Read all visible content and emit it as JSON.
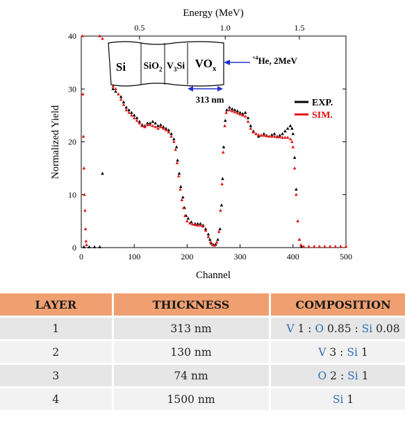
{
  "chart_data": {
    "type": "scatter",
    "title": "",
    "xlabel": "Channel",
    "ylabel": "Normalized Yield",
    "top_axis_label": "Energy (MeV)",
    "xlim": [
      0,
      500
    ],
    "ylim": [
      0,
      40
    ],
    "xticks": [
      "0",
      "100",
      "200",
      "300",
      "400",
      "500"
    ],
    "yticks": [
      "0",
      "10",
      "20",
      "30",
      "40"
    ],
    "top_ticks": [
      {
        "channel": 110,
        "label": "0.5"
      },
      {
        "channel": 272,
        "label": "1.0"
      },
      {
        "channel": 412,
        "label": "1.5"
      }
    ],
    "series": [
      {
        "name": "EXP.",
        "color": "#000000",
        "marker": "triangle",
        "points": [
          [
            5,
            0.1
          ],
          [
            15,
            0.1
          ],
          [
            25,
            0.1
          ],
          [
            35,
            0.1
          ],
          [
            40,
            14
          ],
          [
            60,
            30
          ],
          [
            65,
            29.5
          ],
          [
            70,
            29
          ],
          [
            75,
            28.5
          ],
          [
            80,
            27.5
          ],
          [
            85,
            26.5
          ],
          [
            90,
            26
          ],
          [
            95,
            25.5
          ],
          [
            100,
            25
          ],
          [
            105,
            24.5
          ],
          [
            110,
            23.8
          ],
          [
            115,
            23.2
          ],
          [
            120,
            23
          ],
          [
            125,
            23.5
          ],
          [
            130,
            23.5
          ],
          [
            135,
            23.8
          ],
          [
            140,
            23.5
          ],
          [
            145,
            23
          ],
          [
            150,
            23.2
          ],
          [
            155,
            22.8
          ],
          [
            160,
            22.5
          ],
          [
            165,
            22.2
          ],
          [
            170,
            21.5
          ],
          [
            175,
            20.5
          ],
          [
            180,
            19
          ],
          [
            182,
            16.5
          ],
          [
            185,
            14
          ],
          [
            188,
            11.5
          ],
          [
            192,
            9.5
          ],
          [
            195,
            7.5
          ],
          [
            198,
            6
          ],
          [
            202,
            5.5
          ],
          [
            208,
            4.8
          ],
          [
            215,
            4.5
          ],
          [
            220,
            4.5
          ],
          [
            225,
            4.5
          ],
          [
            230,
            4.2
          ],
          [
            235,
            3.5
          ],
          [
            240,
            2.5
          ],
          [
            243,
            1.5
          ],
          [
            246,
            0.8
          ],
          [
            250,
            0.5
          ],
          [
            254,
            0.6
          ],
          [
            258,
            1.5
          ],
          [
            262,
            3.5
          ],
          [
            265,
            8
          ],
          [
            267,
            13
          ],
          [
            269,
            19
          ],
          [
            272,
            24
          ],
          [
            275,
            26
          ],
          [
            280,
            26.5
          ],
          [
            285,
            26.2
          ],
          [
            290,
            26
          ],
          [
            295,
            25.8
          ],
          [
            300,
            25.5
          ],
          [
            305,
            25.3
          ],
          [
            310,
            25.5
          ],
          [
            315,
            24.5
          ],
          [
            320,
            23
          ],
          [
            325,
            22
          ],
          [
            330,
            21.5
          ],
          [
            335,
            21
          ],
          [
            340,
            21.2
          ],
          [
            345,
            21.5
          ],
          [
            350,
            21.2
          ],
          [
            355,
            21
          ],
          [
            360,
            21.3
          ],
          [
            365,
            21.5
          ],
          [
            370,
            21
          ],
          [
            375,
            21.2
          ],
          [
            380,
            21.5
          ],
          [
            385,
            22
          ],
          [
            390,
            22.5
          ],
          [
            395,
            23
          ],
          [
            398,
            22.5
          ],
          [
            400,
            21.5
          ],
          [
            403,
            17
          ],
          [
            406,
            11
          ],
          [
            409,
            5
          ],
          [
            412,
            1.5
          ],
          [
            416,
            0.2
          ]
        ]
      },
      {
        "name": "SIM.",
        "color": "#e31010",
        "marker": "triangle",
        "points": [
          [
            2,
            40
          ],
          [
            3,
            29
          ],
          [
            4,
            21
          ],
          [
            5,
            15
          ],
          [
            6,
            10
          ],
          [
            7,
            7
          ],
          [
            8,
            3.5
          ],
          [
            9,
            1.2
          ],
          [
            10,
            0.5
          ],
          [
            35,
            40
          ],
          [
            40,
            39.5
          ],
          [
            60,
            30.5
          ],
          [
            65,
            30
          ],
          [
            70,
            29
          ],
          [
            75,
            28
          ],
          [
            80,
            27
          ],
          [
            85,
            26
          ],
          [
            90,
            25.5
          ],
          [
            95,
            25
          ],
          [
            100,
            24.5
          ],
          [
            105,
            24
          ],
          [
            110,
            23.5
          ],
          [
            115,
            23
          ],
          [
            120,
            22.8
          ],
          [
            125,
            23.2
          ],
          [
            130,
            23.2
          ],
          [
            135,
            23
          ],
          [
            140,
            22.8
          ],
          [
            145,
            22.5
          ],
          [
            150,
            22.8
          ],
          [
            155,
            22.5
          ],
          [
            160,
            22.2
          ],
          [
            165,
            21.8
          ],
          [
            170,
            21
          ],
          [
            175,
            20
          ],
          [
            178,
            18.5
          ],
          [
            181,
            16
          ],
          [
            184,
            13.5
          ],
          [
            187,
            11
          ],
          [
            190,
            9
          ],
          [
            193,
            7.5
          ],
          [
            196,
            6
          ],
          [
            200,
            5
          ],
          [
            205,
            4.6
          ],
          [
            210,
            4.4
          ],
          [
            215,
            4.3
          ],
          [
            220,
            4.2
          ],
          [
            225,
            4.2
          ],
          [
            230,
            4
          ],
          [
            235,
            3.2
          ],
          [
            240,
            2
          ],
          [
            244,
            1
          ],
          [
            248,
            0.5
          ],
          [
            252,
            0.4
          ],
          [
            256,
            1
          ],
          [
            260,
            3
          ],
          [
            263,
            7
          ],
          [
            266,
            12
          ],
          [
            268,
            18
          ],
          [
            271,
            23
          ],
          [
            274,
            25.5
          ],
          [
            280,
            26
          ],
          [
            285,
            25.8
          ],
          [
            290,
            25.6
          ],
          [
            295,
            25.4
          ],
          [
            300,
            25.2
          ],
          [
            305,
            25
          ],
          [
            310,
            24.8
          ],
          [
            315,
            23.8
          ],
          [
            320,
            22.5
          ],
          [
            325,
            21.8
          ],
          [
            330,
            21.5
          ],
          [
            335,
            21.3
          ],
          [
            340,
            21.2
          ],
          [
            345,
            21.2
          ],
          [
            350,
            21.1
          ],
          [
            355,
            21
          ],
          [
            360,
            21
          ],
          [
            365,
            21
          ],
          [
            370,
            20.9
          ],
          [
            375,
            20.9
          ],
          [
            380,
            20.8
          ],
          [
            385,
            20.8
          ],
          [
            390,
            20.8
          ],
          [
            395,
            20.5
          ],
          [
            398,
            20
          ],
          [
            400,
            19
          ],
          [
            403,
            15
          ],
          [
            406,
            10
          ],
          [
            409,
            5
          ],
          [
            412,
            1.5
          ],
          [
            415,
            0.5
          ],
          [
            420,
            0.2
          ],
          [
            430,
            0.2
          ],
          [
            440,
            0.2
          ],
          [
            450,
            0.2
          ],
          [
            460,
            0.2
          ],
          [
            470,
            0.2
          ],
          [
            480,
            0.2
          ],
          [
            490,
            0.2
          ],
          [
            500,
            0.2
          ]
        ]
      }
    ],
    "legend": [
      "EXP.",
      "SIM."
    ],
    "legend_position": "right",
    "annotations": {
      "layers": [
        "Si",
        "SiO2",
        "V3Si",
        "VOx"
      ],
      "beam": "4He, 2MeV",
      "thickness": "313 nm"
    }
  },
  "table": {
    "headers": [
      "LAYER",
      "THICKNESS",
      "COMPOSITION"
    ],
    "rows": [
      {
        "layer": "1",
        "thickness": "313 nm",
        "composition": [
          [
            "V",
            " 1 : "
          ],
          [
            "O",
            " 0.85 : "
          ],
          [
            "Si",
            " 0.08"
          ]
        ]
      },
      {
        "layer": "2",
        "thickness": "130 nm",
        "composition": [
          [
            "V",
            " 3 : "
          ],
          [
            "Si",
            " 1"
          ]
        ]
      },
      {
        "layer": "3",
        "thickness": "74 nm",
        "composition": [
          [
            "O",
            " 2 : "
          ],
          [
            "Si",
            " 1"
          ]
        ]
      },
      {
        "layer": "4",
        "thickness": "1500 nm",
        "composition": [
          [
            "Si",
            " 1"
          ]
        ]
      }
    ]
  }
}
